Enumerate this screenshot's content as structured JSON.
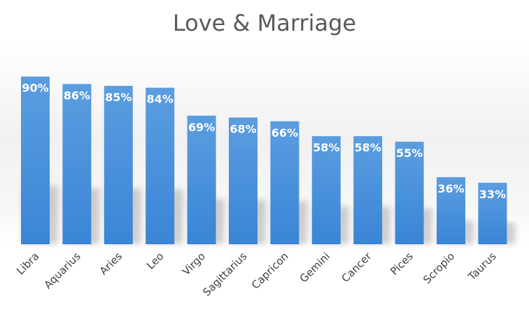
{
  "chart_data": {
    "type": "bar",
    "title": "Love & Marriage",
    "xlabel": "",
    "ylabel": "",
    "categories": [
      "Libra",
      "Aquarius",
      "Aries",
      "Leo",
      "Virgo",
      "Sagittarius",
      "Capricon",
      "Gemini",
      "Cancer",
      "Pices",
      "Scropio",
      "Taurus"
    ],
    "values": [
      90,
      86,
      85,
      84,
      69,
      68,
      66,
      58,
      58,
      55,
      36,
      33
    ],
    "value_labels": [
      "90%",
      "86%",
      "85%",
      "84%",
      "69%",
      "68%",
      "66%",
      "58%",
      "58%",
      "55%",
      "36%",
      "33%"
    ],
    "unit": "%",
    "ylim": [
      0,
      100
    ],
    "grid": false,
    "legend": "none",
    "bar_color": "#4a90d9"
  }
}
